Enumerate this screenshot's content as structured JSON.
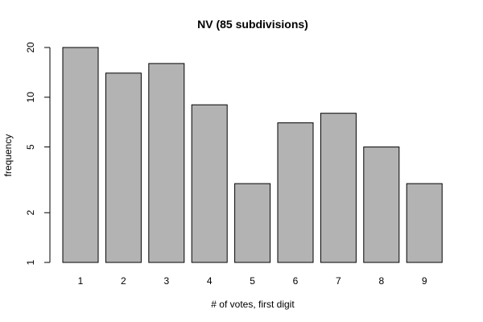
{
  "chart_data": {
    "type": "bar",
    "title": "NV (85 subdivisions)",
    "xlabel": "# of votes, first digit",
    "ylabel": "frequency",
    "y_scale": "log",
    "ylim": [
      1,
      20
    ],
    "yticks": [
      1,
      2,
      5,
      10,
      20
    ],
    "categories": [
      "1",
      "2",
      "3",
      "4",
      "5",
      "6",
      "7",
      "8",
      "9"
    ],
    "values": [
      20,
      14,
      16,
      9,
      3,
      7,
      8,
      5,
      3
    ],
    "bar_color": "#b3b3b3",
    "bar_edge_color": "#000000",
    "grid": false
  }
}
